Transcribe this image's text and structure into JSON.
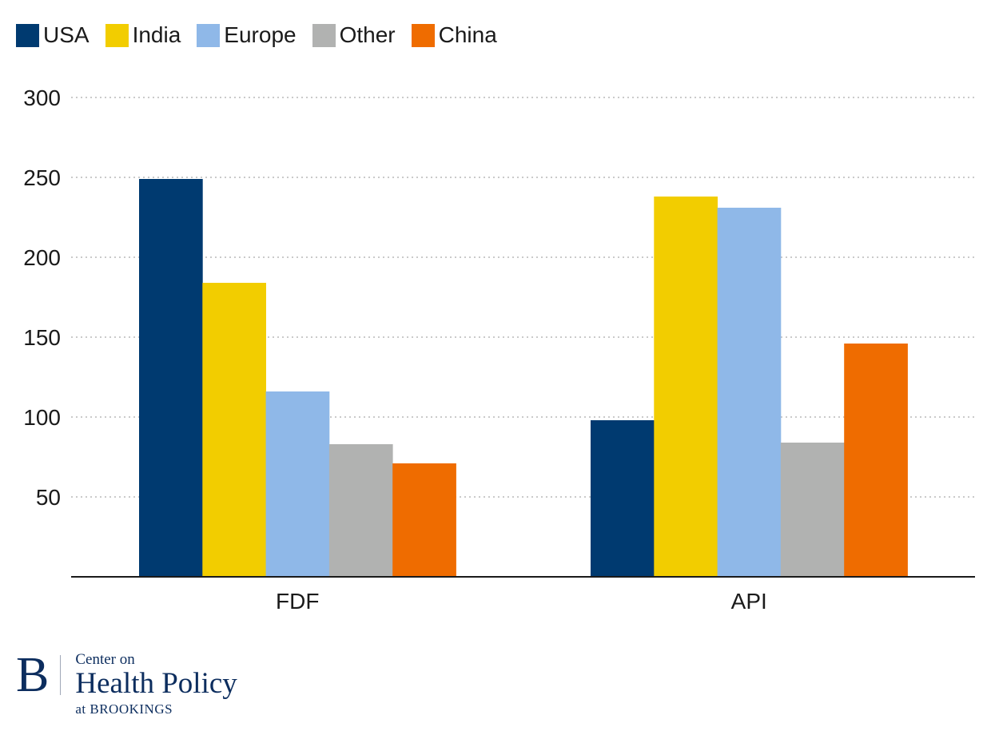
{
  "chart_data": {
    "type": "bar",
    "categories": [
      "FDF",
      "API"
    ],
    "series": [
      {
        "name": "USA",
        "color": "#003a70",
        "values": [
          249,
          98
        ]
      },
      {
        "name": "India",
        "color": "#f2cd00",
        "values": [
          184,
          238
        ]
      },
      {
        "name": "Europe",
        "color": "#8fb8e8",
        "values": [
          116,
          231
        ]
      },
      {
        "name": "Other",
        "color": "#b1b2b1",
        "values": [
          83,
          84
        ]
      },
      {
        "name": "China",
        "color": "#ef6c00",
        "values": [
          71,
          146
        ]
      }
    ],
    "yticks": [
      50,
      100,
      150,
      200,
      250,
      300
    ],
    "ylim": [
      0,
      300
    ],
    "grid": true,
    "legend_position": "top-left"
  },
  "logo": {
    "mark": "B",
    "line1": "Center on",
    "line2": "Health Policy",
    "line3": "at BROOKINGS"
  }
}
